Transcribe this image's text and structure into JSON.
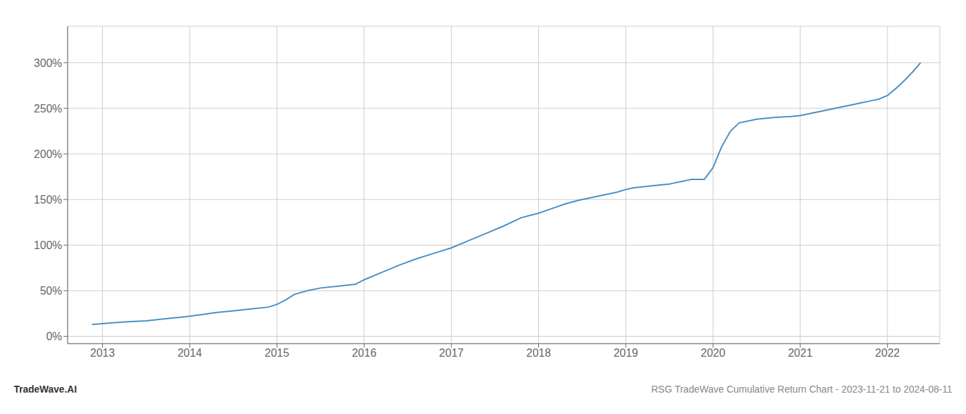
{
  "chart_data": {
    "type": "line",
    "title": "RSG TradeWave Cumulative Return Chart - 2023-11-21 to 2024-08-11",
    "annotations": [
      "TradeWave.AI"
    ],
    "color": "#4a90c4",
    "grid": true,
    "xlim": [
      2012.6,
      2022.6
    ],
    "xticks": [
      2013,
      2014,
      2015,
      2016,
      2017,
      2018,
      2019,
      2020,
      2021,
      2022
    ],
    "ylim": [
      -8,
      340
    ],
    "yticks": [
      {
        "value": 0,
        "label": "0%"
      },
      {
        "value": 50,
        "label": "50%"
      },
      {
        "value": 100,
        "label": "100%"
      },
      {
        "value": 150,
        "label": "150%"
      },
      {
        "value": 200,
        "label": "200%"
      },
      {
        "value": 250,
        "label": "250%"
      },
      {
        "value": 300,
        "label": "300%"
      }
    ],
    "x": [
      2012.88,
      2013.0,
      2013.15,
      2013.3,
      2013.5,
      2013.7,
      2013.9,
      2014.0,
      2014.15,
      2014.3,
      2014.5,
      2014.7,
      2014.9,
      2015.0,
      2015.1,
      2015.2,
      2015.35,
      2015.5,
      2015.7,
      2015.9,
      2016.0,
      2016.2,
      2016.4,
      2016.6,
      2016.8,
      2017.0,
      2017.2,
      2017.4,
      2017.6,
      2017.8,
      2018.0,
      2018.15,
      2018.3,
      2018.45,
      2018.6,
      2018.75,
      2018.9,
      2019.0,
      2019.1,
      2019.2,
      2019.3,
      2019.4,
      2019.5,
      2019.55,
      2019.6,
      2019.65,
      2019.7,
      2019.75,
      2019.9,
      2020.0,
      2020.1,
      2020.2,
      2020.3,
      2020.5,
      2020.7,
      2020.9,
      2021.0,
      2021.2,
      2021.4,
      2021.5,
      2021.6,
      2021.7,
      2021.8,
      2021.9,
      2022.0,
      2022.1,
      2022.2,
      2022.3,
      2022.38
    ],
    "values": [
      13,
      14,
      15,
      16,
      17,
      19,
      21,
      22,
      24,
      26,
      28,
      30,
      32,
      35,
      40,
      46,
      50,
      53,
      55,
      57,
      62,
      70,
      78,
      85,
      91,
      97,
      105,
      113,
      121,
      130,
      135,
      140,
      145,
      149,
      152,
      155,
      158,
      161,
      163,
      164,
      165,
      166,
      167,
      168,
      169,
      170,
      171,
      172,
      172,
      185,
      208,
      225,
      234,
      238,
      240,
      241,
      242,
      246,
      250,
      252,
      254,
      256,
      258,
      260,
      264,
      272,
      281,
      291,
      300
    ]
  }
}
